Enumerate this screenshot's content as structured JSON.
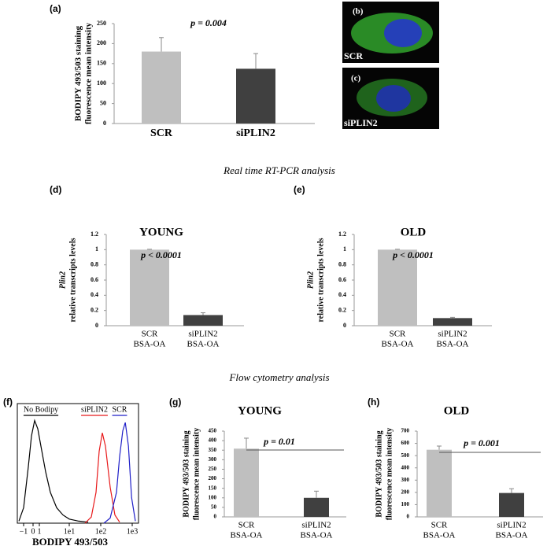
{
  "sections": [
    "Real time RT-PCR analysis",
    "Flow cytometry analysis"
  ],
  "images": [
    {
      "panel": "(b)",
      "label": "SCR"
    },
    {
      "panel": "(c)",
      "label": "siPLIN2"
    }
  ],
  "chart_data": [
    {
      "type": "bar",
      "panel": "(a)",
      "categories": [
        "SCR",
        "siPLIN2"
      ],
      "values": [
        180,
        137
      ],
      "errors": [
        35,
        38
      ],
      "colors": [
        "#bfbfbf",
        "#404040"
      ],
      "ylim": [
        0,
        250
      ],
      "yticks": [
        0,
        50,
        100,
        150,
        200,
        250
      ],
      "ylabel": [
        "BODIPY 493/503 staining",
        "fluorescence mean intensity"
      ],
      "annotation": "p = 0.004"
    },
    {
      "type": "bar",
      "panel": "(d)",
      "title": "YOUNG",
      "categories": [
        [
          "SCR",
          "BSA-OA"
        ],
        [
          "siPLIN2",
          "BSA-OA"
        ]
      ],
      "values": [
        1.0,
        0.14
      ],
      "errors": [
        0.005,
        0.03
      ],
      "colors": [
        "#bfbfbf",
        "#404040"
      ],
      "ylim": [
        0,
        1.2
      ],
      "yticks": [
        0,
        0.2,
        0.4,
        0.6,
        0.8,
        1,
        1.2
      ],
      "ylabel": [
        "Plin2",
        "relative transcripts levels"
      ],
      "annotation": "p < 0.0001"
    },
    {
      "type": "bar",
      "panel": "(e)",
      "title": "OLD",
      "categories": [
        [
          "SCR",
          "BSA-OA"
        ],
        [
          "siPLIN2",
          "BSA-OA"
        ]
      ],
      "values": [
        1.0,
        0.1
      ],
      "errors": [
        0.005,
        0.01
      ],
      "colors": [
        "#bfbfbf",
        "#404040"
      ],
      "ylim": [
        0,
        1.2
      ],
      "yticks": [
        0,
        0.2,
        0.4,
        0.6,
        0.8,
        1,
        1.2
      ],
      "ylabel": [
        "Plin2",
        "relative transcripts levels"
      ],
      "annotation": "p < 0.0001"
    },
    {
      "type": "line",
      "panel": "(f)",
      "xlabel": "BODIPY 493/503",
      "xlim": [
        -0.65,
        3.2
      ],
      "ylim": [
        0,
        105
      ],
      "xticks": [
        {
          "value": -0.45,
          "label": "−1"
        },
        {
          "value": -0.15,
          "label": "0"
        },
        {
          "value": 0.05,
          "label": "1"
        },
        {
          "value": 1,
          "label": "1e1"
        },
        {
          "value": 2,
          "label": "1e2"
        },
        {
          "value": 3,
          "label": "1e3"
        }
      ],
      "series": [
        {
          "name": "No Bodipy",
          "color": "#000000",
          "x": [
            -0.6,
            -0.45,
            -0.3,
            -0.2,
            -0.1,
            0,
            0.1,
            0.25,
            0.4,
            0.6,
            0.8,
            1.0,
            1.3,
            1.6
          ],
          "values": [
            2,
            15,
            55,
            85,
            100,
            92,
            75,
            50,
            30,
            15,
            8,
            4,
            2,
            1
          ]
        },
        {
          "name": "siPLIN2",
          "color": "#e8191a",
          "x": [
            1.5,
            1.7,
            1.85,
            1.95,
            2.05,
            2.15,
            2.3,
            2.45,
            2.6
          ],
          "values": [
            0,
            6,
            30,
            70,
            88,
            75,
            35,
            8,
            1
          ]
        },
        {
          "name": "SCR",
          "color": "#1f1fc8",
          "x": [
            2.1,
            2.3,
            2.5,
            2.6,
            2.7,
            2.78,
            2.88,
            2.98,
            3.1
          ],
          "values": [
            0,
            5,
            30,
            65,
            90,
            98,
            75,
            25,
            2
          ]
        }
      ]
    },
    {
      "type": "bar",
      "panel": "(g)",
      "title": "YOUNG",
      "categories": [
        [
          "SCR",
          "BSA-OA"
        ],
        [
          "siPLIN2",
          "BSA-OA"
        ]
      ],
      "values": [
        358,
        100
      ],
      "errors": [
        55,
        35
      ],
      "colors": [
        "#bfbfbf",
        "#404040"
      ],
      "ylim": [
        0,
        450
      ],
      "yticks": [
        0,
        50,
        100,
        150,
        200,
        250,
        300,
        350,
        400,
        450
      ],
      "ylabel": [
        "BODIPY 493/503 staining",
        "fluorescence mean intensity"
      ],
      "annotation": "p = 0.01",
      "significance_line": true
    },
    {
      "type": "bar",
      "panel": "(h)",
      "title": "OLD",
      "categories": [
        [
          "SCR",
          "BSA-OA"
        ],
        [
          "siPLIN2",
          "BSA-OA"
        ]
      ],
      "values": [
        548,
        195
      ],
      "errors": [
        30,
        35
      ],
      "colors": [
        "#bfbfbf",
        "#404040"
      ],
      "ylim": [
        0,
        700
      ],
      "yticks": [
        0,
        100,
        200,
        300,
        400,
        500,
        600,
        700
      ],
      "ylabel": [
        "BODIPY 493/503 staining",
        "fluorescence mean intensity"
      ],
      "annotation": "p = 0.001",
      "significance_line": true
    }
  ]
}
